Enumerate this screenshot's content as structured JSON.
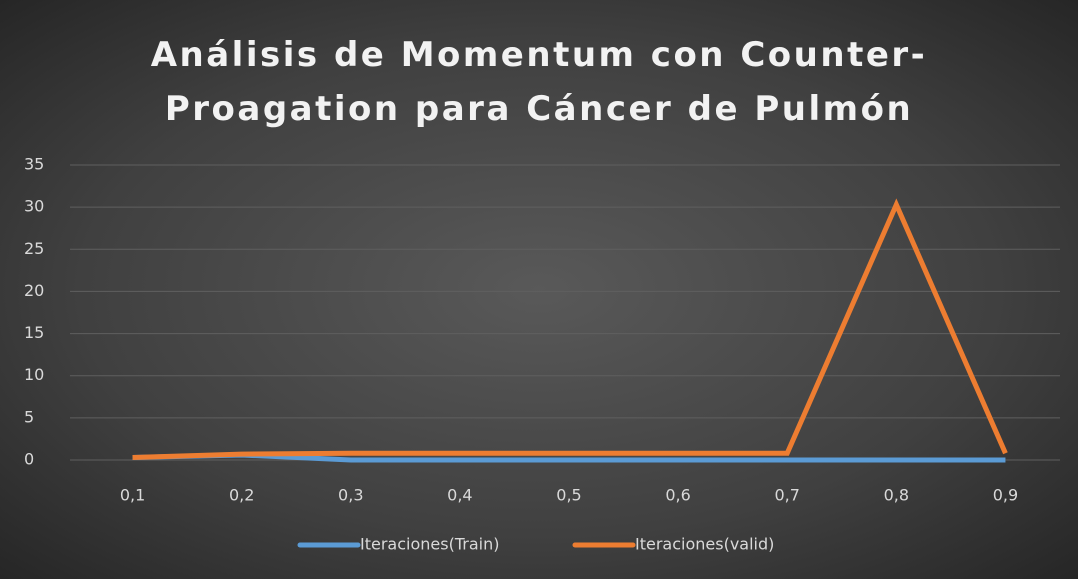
{
  "chart_data": {
    "type": "line",
    "title": "Análisis de Momentum con Counter-Proagation para Cáncer de Pulmón",
    "categories": [
      "0,1",
      "0,2",
      "0,3",
      "0,4",
      "0,5",
      "0,6",
      "0,7",
      "0,8",
      "0,9"
    ],
    "series": [
      {
        "name": "Iteraciones(Train)",
        "color": "#5b9bd5",
        "values": [
          0.3,
          0.6,
          0,
          0,
          0,
          0,
          0,
          0,
          0
        ]
      },
      {
        "name": "Iteraciones(valid)",
        "color": "#ed7d31",
        "values": [
          0.3,
          0.7,
          0.8,
          0.8,
          0.8,
          0.8,
          0.8,
          30.3,
          0.8
        ]
      }
    ],
    "ylim": [
      0,
      35
    ],
    "yticks": [
      0,
      5,
      10,
      15,
      20,
      25,
      30,
      35
    ],
    "grid": true,
    "legend": "bottom"
  }
}
